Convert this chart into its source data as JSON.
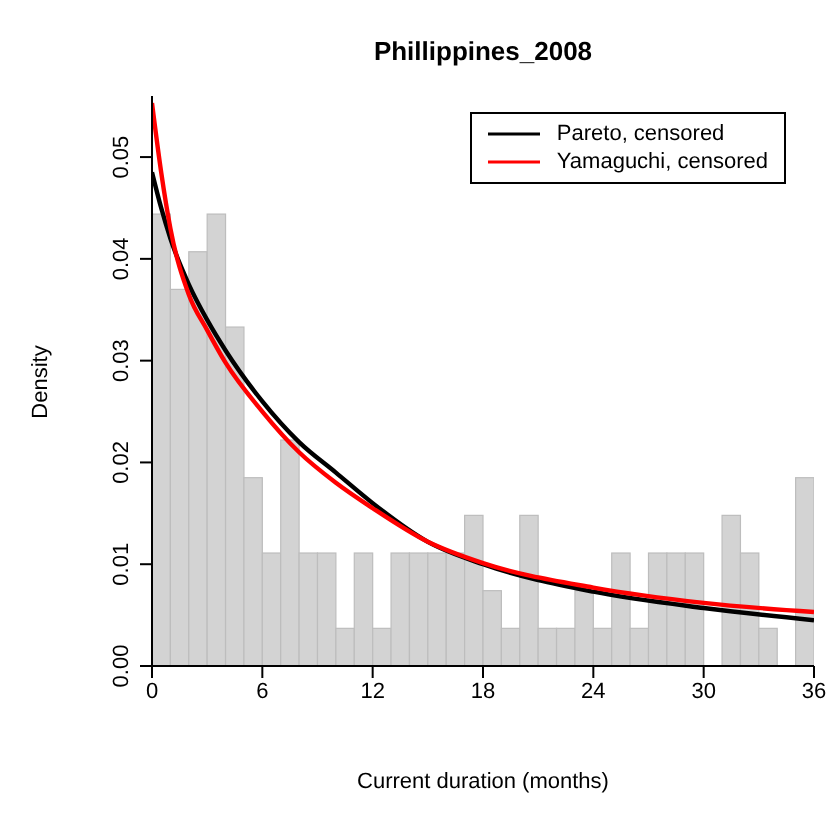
{
  "chart_data": {
    "type": "histogram",
    "title": "Phillippines_2008",
    "xlabel": "Current duration (months)",
    "ylabel": "Density",
    "bins": [
      0,
      1,
      2,
      3,
      4,
      5,
      6,
      7,
      8,
      9,
      10,
      11,
      12,
      13,
      14,
      15,
      16,
      17,
      18,
      19,
      20,
      21,
      22,
      23,
      24,
      25,
      26,
      27,
      28,
      29,
      30,
      31,
      32,
      33,
      34,
      35,
      36
    ],
    "values": [
      0.0444,
      0.037,
      0.0407,
      0.0444,
      0.0333,
      0.0185,
      0.0111,
      0.0222,
      0.0111,
      0.0111,
      0.0037,
      0.0111,
      0.0037,
      0.0111,
      0.0111,
      0.0111,
      0.0111,
      0.0148,
      0.0074,
      0.0037,
      0.0148,
      0.0037,
      0.0037,
      0.0074,
      0.0037,
      0.0111,
      0.0037,
      0.0111,
      0.0111,
      0.0111,
      0,
      0.0148,
      0.0111,
      0.0037,
      0,
      0.0185
    ],
    "color": "#d3d3d3",
    "series": [
      {
        "name": "Pareto, censored",
        "type": "line",
        "color": "#000000",
        "x": [
          0,
          0.5,
          1,
          2,
          3,
          4,
          6,
          8,
          10,
          12,
          15,
          18,
          24,
          30,
          36
        ],
        "values": [
          0.0485,
          0.045,
          0.042,
          0.0375,
          0.034,
          0.031,
          0.026,
          0.022,
          0.019,
          0.016,
          0.0122,
          0.01,
          0.0073,
          0.0057,
          0.0045
        ]
      },
      {
        "name": "Yamaguchi, censored",
        "type": "line",
        "color": "#ff0000",
        "x": [
          0,
          0.5,
          1,
          2,
          3,
          4,
          6,
          8,
          10,
          12,
          15,
          18,
          24,
          30,
          36
        ],
        "values": [
          0.0553,
          0.0485,
          0.043,
          0.0365,
          0.033,
          0.0298,
          0.025,
          0.021,
          0.018,
          0.0155,
          0.0122,
          0.0101,
          0.0077,
          0.0062,
          0.0053
        ]
      }
    ],
    "xlim": [
      0,
      36
    ],
    "xticks": [
      0,
      6,
      12,
      18,
      24,
      30,
      36
    ],
    "ylim": [
      0,
      0.056
    ],
    "yticks": [
      {
        "value": 0,
        "label": "0.00"
      },
      {
        "value": 0.01,
        "label": "0.01"
      },
      {
        "value": 0.02,
        "label": "0.02"
      },
      {
        "value": 0.03,
        "label": "0.03"
      },
      {
        "value": 0.04,
        "label": "0.04"
      },
      {
        "value": 0.05,
        "label": "0.05"
      }
    ],
    "grid": false,
    "legend": "top right",
    "marker": "none",
    "line_style": "solid"
  }
}
